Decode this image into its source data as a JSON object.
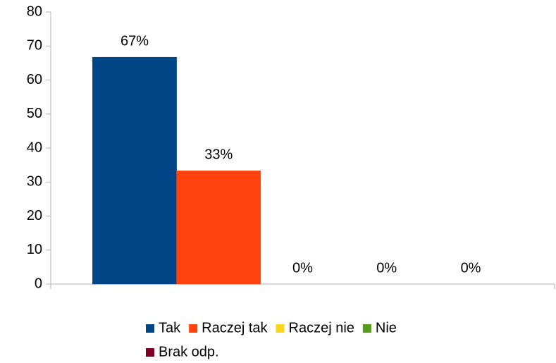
{
  "chart_data": {
    "type": "bar",
    "categories": [
      null
    ],
    "series": [
      {
        "name": "Tak",
        "color": "#004586",
        "values": [
          66.7
        ],
        "value_labels": [
          "67%"
        ]
      },
      {
        "name": "Raczej tak",
        "color": "#ff420e",
        "values": [
          33.3
        ],
        "value_labels": [
          "33%"
        ]
      },
      {
        "name": "Raczej nie",
        "color": "#ffd320",
        "values": [
          0
        ],
        "value_labels": [
          "0%"
        ]
      },
      {
        "name": "Nie",
        "color": "#579d1c",
        "values": [
          0
        ],
        "value_labels": [
          "0%"
        ]
      },
      {
        "name": "Brak odp.",
        "color": "#7e0021",
        "values": [
          0
        ],
        "value_labels": [
          "0%"
        ]
      }
    ],
    "ylim": [
      0,
      80
    ],
    "yticks": [
      0,
      10,
      20,
      30,
      40,
      50,
      60,
      70,
      80
    ],
    "grid": false,
    "legend": "bottom"
  }
}
